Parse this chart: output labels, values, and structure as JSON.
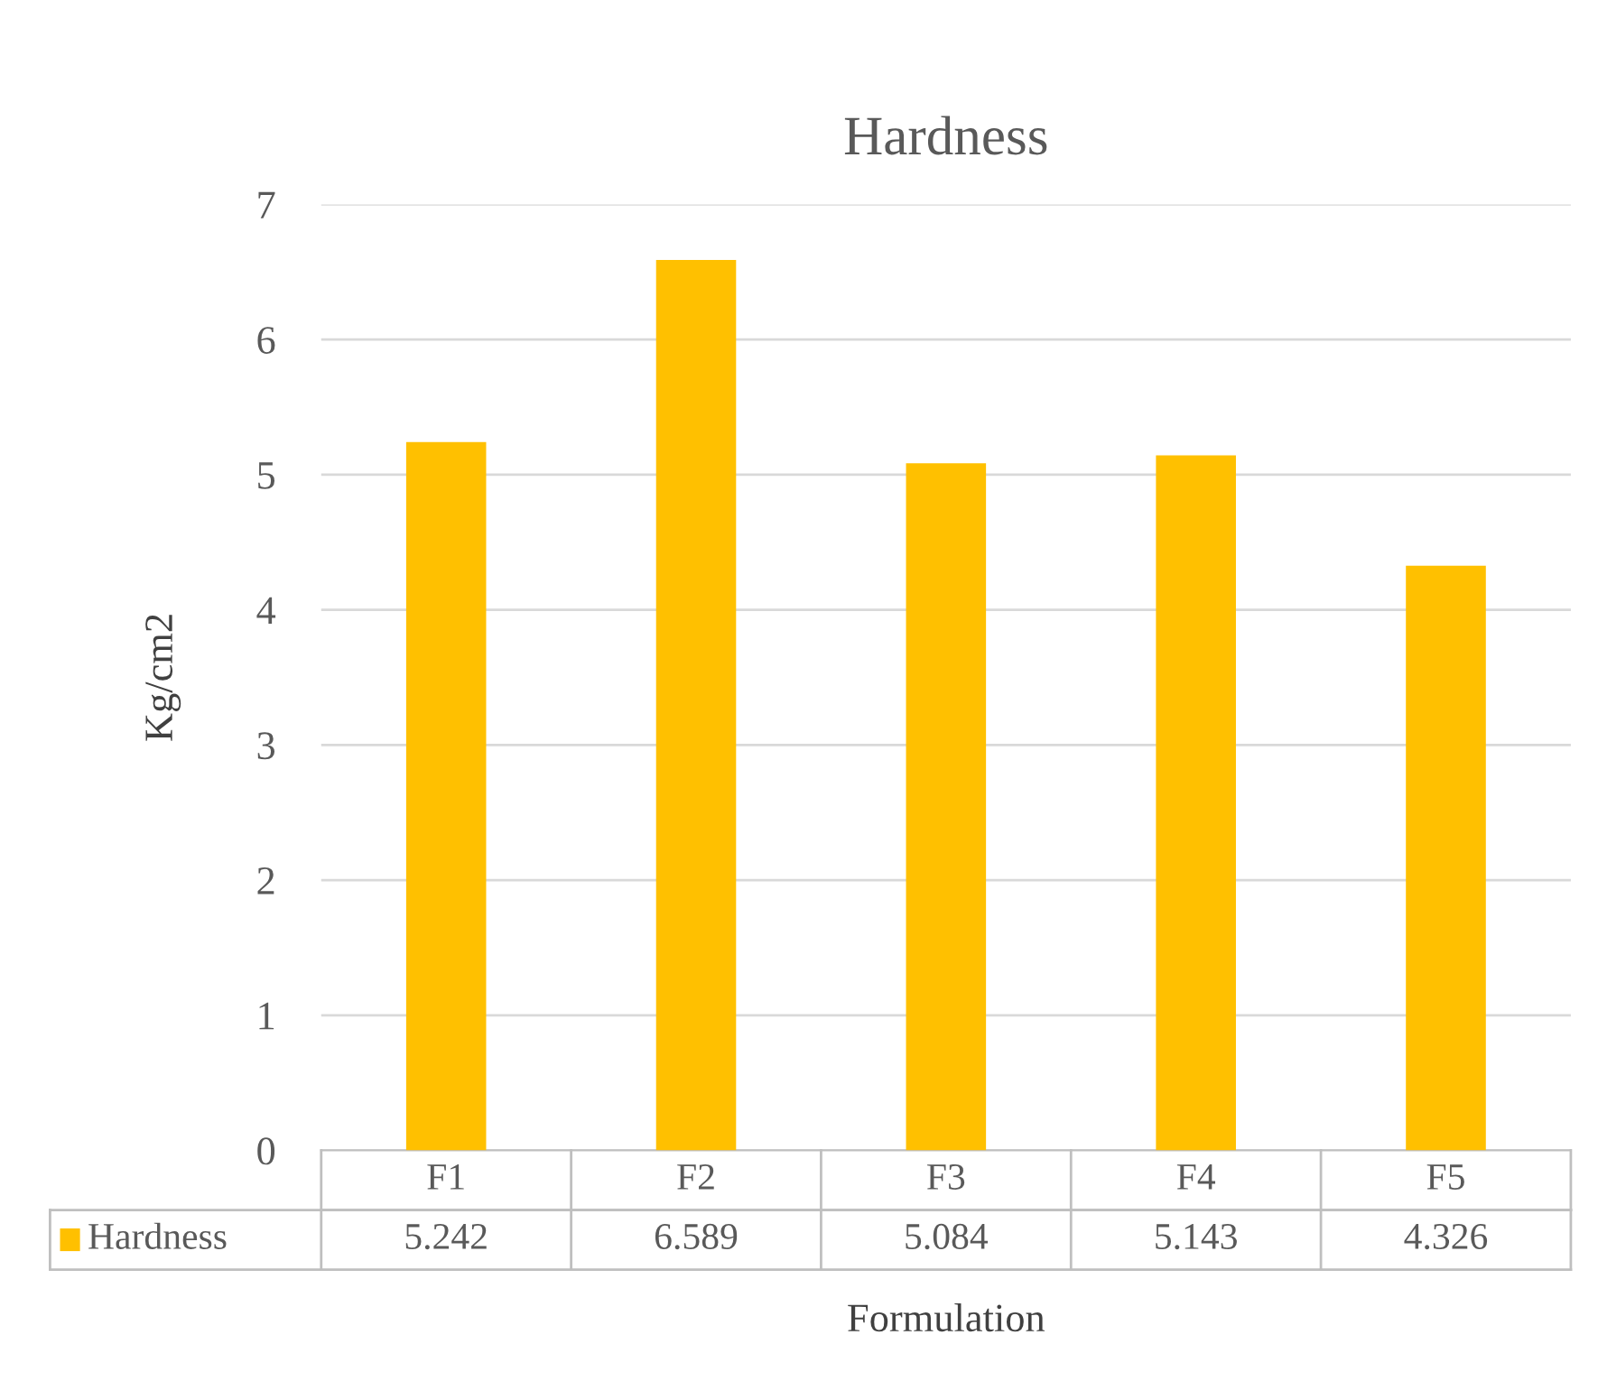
{
  "chart_data": {
    "type": "bar",
    "title": "Hardness",
    "xlabel": "Formulation",
    "ylabel": "Kg/cm2",
    "categories": [
      "F1",
      "F2",
      "F3",
      "F4",
      "F5"
    ],
    "series": [
      {
        "name": "Hardness",
        "color": "#ffc000",
        "values": [
          5.242,
          6.589,
          5.084,
          5.143,
          4.326
        ]
      }
    ],
    "ylim": [
      0,
      7
    ],
    "yticks": [
      0,
      1,
      2,
      3,
      4,
      5,
      6,
      7
    ],
    "grid": "y",
    "data_labels": true
  }
}
